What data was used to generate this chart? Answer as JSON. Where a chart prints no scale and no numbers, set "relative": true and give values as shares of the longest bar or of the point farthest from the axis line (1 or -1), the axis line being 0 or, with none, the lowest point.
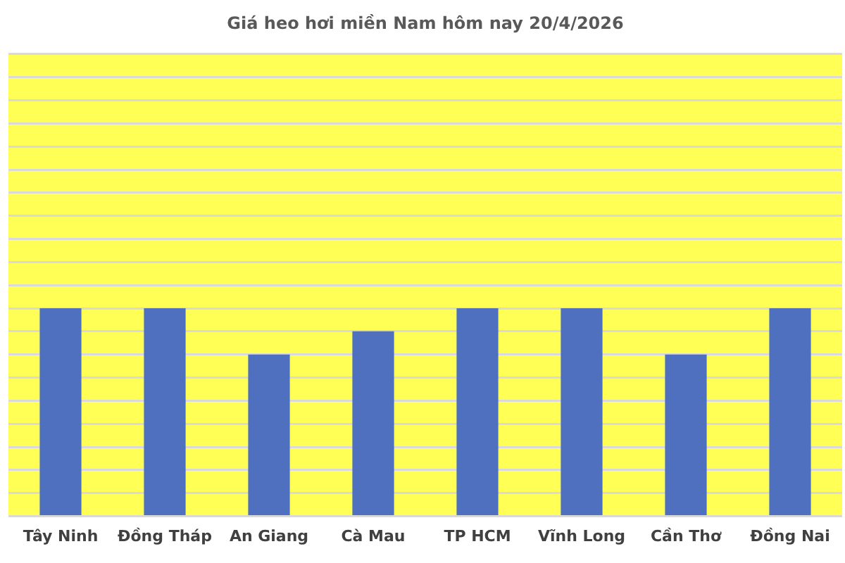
{
  "chart_data": {
    "type": "bar",
    "title": "Giá heo hơi miền Nam hôm nay 20/4/2026",
    "relative": true,
    "categories": [
      "Tây Ninh",
      "Đồng Tháp",
      "An Giang",
      "Cà Mau",
      "TP HCM",
      "Vĩnh Long",
      "Cần Thơ",
      "Đồng Nai"
    ],
    "values": [
      1,
      1,
      0.778,
      0.889,
      1,
      1,
      0.778,
      1
    ],
    "color": "#4e70bf",
    "grid": "y",
    "legend": false
  }
}
